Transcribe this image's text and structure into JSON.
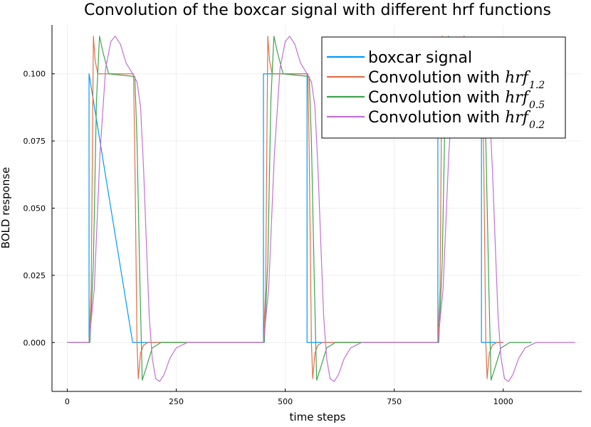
{
  "chart_data": {
    "type": "line",
    "title": "Convolution of the boxcar signal with different hrf functions",
    "xlabel": "time steps",
    "ylabel": "BOLD response",
    "xlim": [
      -35,
      1180
    ],
    "ylim": [
      -0.0182,
      0.1182
    ],
    "xticks": [
      0,
      250,
      500,
      750,
      1000
    ],
    "xtick_labels": [
      "0",
      "250",
      "500",
      "750",
      "1000"
    ],
    "yticks": [
      0.0,
      0.025,
      0.05,
      0.075,
      0.1
    ],
    "ytick_labels": [
      "0.000",
      "0.025",
      "0.050",
      "0.075",
      "0.100"
    ],
    "grid": true,
    "legend_position": "top-right",
    "series": [
      {
        "name": "boxcar signal",
        "color": "#009AFA",
        "points": [
          [
            0,
            0
          ],
          [
            50,
            0
          ],
          [
            50,
            0.1
          ],
          [
            150,
            0
          ],
          [
            450,
            0
          ],
          [
            450,
            0.1
          ],
          [
            550,
            0.1
          ],
          [
            550,
            0
          ],
          [
            850,
            0
          ],
          [
            850,
            0.1
          ],
          [
            950,
            0.1
          ],
          [
            950,
            0
          ],
          [
            1000,
            0
          ]
        ]
      },
      {
        "name_prefix": "Convolution with ",
        "name_math": "hrf",
        "name_sub": "1.2",
        "color": "#E36F47",
        "points": [
          [
            0,
            0
          ],
          [
            50,
            0
          ],
          [
            55,
            0.02
          ],
          [
            60,
            0.114
          ],
          [
            64,
            0.105
          ],
          [
            70,
            0.1
          ],
          [
            152,
            0.1
          ],
          [
            155,
            0.07
          ],
          [
            160,
            0.0
          ],
          [
            163,
            -0.0135
          ],
          [
            168,
            -0.004
          ],
          [
            175,
            -0.001
          ],
          [
            185,
            0
          ],
          [
            450,
            0
          ],
          [
            455,
            0.02
          ],
          [
            460,
            0.114
          ],
          [
            464,
            0.105
          ],
          [
            470,
            0.1
          ],
          [
            552,
            0.1
          ],
          [
            555,
            0.07
          ],
          [
            560,
            0.0
          ],
          [
            563,
            -0.0135
          ],
          [
            568,
            -0.004
          ],
          [
            575,
            -0.001
          ],
          [
            585,
            0
          ],
          [
            850,
            0
          ],
          [
            855,
            0.02
          ],
          [
            860,
            0.114
          ],
          [
            864,
            0.105
          ],
          [
            870,
            0.1
          ],
          [
            952,
            0.1
          ],
          [
            955,
            0.07
          ],
          [
            960,
            0.0
          ],
          [
            963,
            -0.0135
          ],
          [
            968,
            -0.004
          ],
          [
            975,
            -0.001
          ],
          [
            985,
            0
          ],
          [
            1000,
            0
          ]
        ]
      },
      {
        "name_prefix": "Convolution with ",
        "name_math": "hrf",
        "name_sub": "0.5",
        "color": "#3EA44E",
        "points": [
          [
            0,
            0
          ],
          [
            52,
            0
          ],
          [
            60,
            0.03
          ],
          [
            67,
            0.09
          ],
          [
            74,
            0.114
          ],
          [
            82,
            0.108
          ],
          [
            95,
            0.1
          ],
          [
            155,
            0.099
          ],
          [
            160,
            0.075
          ],
          [
            167,
            0.02
          ],
          [
            172,
            -0.014
          ],
          [
            180,
            -0.01
          ],
          [
            195,
            -0.002
          ],
          [
            215,
            0
          ],
          [
            450,
            0
          ],
          [
            452,
            0
          ],
          [
            460,
            0.03
          ],
          [
            467,
            0.09
          ],
          [
            474,
            0.114
          ],
          [
            482,
            0.108
          ],
          [
            495,
            0.1
          ],
          [
            555,
            0.099
          ],
          [
            560,
            0.075
          ],
          [
            567,
            0.02
          ],
          [
            572,
            -0.014
          ],
          [
            580,
            -0.01
          ],
          [
            595,
            -0.002
          ],
          [
            615,
            0
          ],
          [
            850,
            0
          ],
          [
            852,
            0
          ],
          [
            860,
            0.03
          ],
          [
            867,
            0.09
          ],
          [
            874,
            0.114
          ],
          [
            882,
            0.108
          ],
          [
            895,
            0.1
          ],
          [
            955,
            0.099
          ],
          [
            960,
            0.075
          ],
          [
            967,
            0.02
          ],
          [
            972,
            -0.014
          ],
          [
            980,
            -0.01
          ],
          [
            995,
            -0.002
          ],
          [
            1015,
            0
          ],
          [
            1065,
            0
          ]
        ]
      },
      {
        "name_prefix": "Convolution with ",
        "name_math": "hrf",
        "name_sub": "0.2",
        "color": "#C271D2",
        "points": [
          [
            0,
            0
          ],
          [
            50,
            0
          ],
          [
            62,
            0.02
          ],
          [
            75,
            0.07
          ],
          [
            88,
            0.102
          ],
          [
            100,
            0.112
          ],
          [
            110,
            0.114
          ],
          [
            122,
            0.111
          ],
          [
            135,
            0.104
          ],
          [
            150,
            0.1
          ],
          [
            160,
            0.097
          ],
          [
            168,
            0.088
          ],
          [
            175,
            0.065
          ],
          [
            182,
            0.035
          ],
          [
            188,
            0.01
          ],
          [
            195,
            -0.006
          ],
          [
            203,
            -0.0135
          ],
          [
            212,
            -0.0145
          ],
          [
            222,
            -0.012
          ],
          [
            235,
            -0.006
          ],
          [
            250,
            -0.002
          ],
          [
            275,
            0
          ],
          [
            450,
            0
          ],
          [
            462,
            0.02
          ],
          [
            475,
            0.07
          ],
          [
            488,
            0.102
          ],
          [
            500,
            0.112
          ],
          [
            510,
            0.114
          ],
          [
            522,
            0.111
          ],
          [
            535,
            0.104
          ],
          [
            550,
            0.1
          ],
          [
            560,
            0.097
          ],
          [
            568,
            0.088
          ],
          [
            575,
            0.065
          ],
          [
            582,
            0.035
          ],
          [
            588,
            0.01
          ],
          [
            595,
            -0.006
          ],
          [
            603,
            -0.0135
          ],
          [
            612,
            -0.0145
          ],
          [
            622,
            -0.012
          ],
          [
            635,
            -0.006
          ],
          [
            650,
            -0.002
          ],
          [
            675,
            0
          ],
          [
            850,
            0
          ],
          [
            862,
            0.02
          ],
          [
            875,
            0.07
          ],
          [
            888,
            0.102
          ],
          [
            900,
            0.112
          ],
          [
            910,
            0.114
          ],
          [
            922,
            0.111
          ],
          [
            935,
            0.104
          ],
          [
            950,
            0.1
          ],
          [
            960,
            0.097
          ],
          [
            968,
            0.088
          ],
          [
            975,
            0.065
          ],
          [
            982,
            0.035
          ],
          [
            988,
            0.01
          ],
          [
            995,
            -0.006
          ],
          [
            1003,
            -0.0135
          ],
          [
            1012,
            -0.0145
          ],
          [
            1022,
            -0.012
          ],
          [
            1035,
            -0.006
          ],
          [
            1050,
            -0.002
          ],
          [
            1075,
            0
          ],
          [
            1165,
            0
          ]
        ]
      }
    ]
  }
}
